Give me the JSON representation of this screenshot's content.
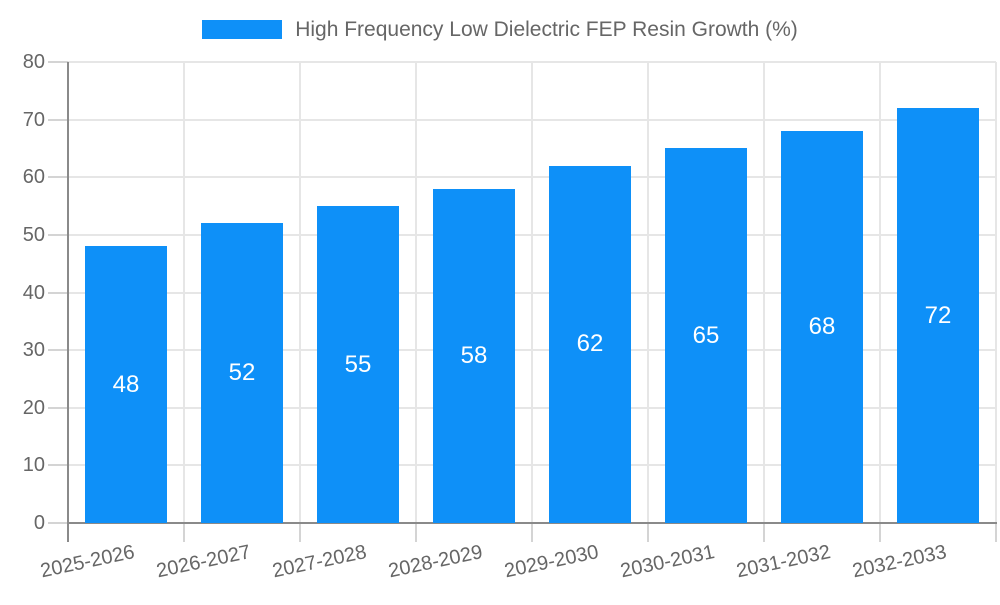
{
  "chart_data": {
    "type": "bar",
    "title": "High Frequency Low Dielectric FEP Resin Growth (%)",
    "legend": {
      "label": "High Frequency Low Dielectric FEP Resin Growth (%)",
      "position": "top-center"
    },
    "categories": [
      "2025-2026",
      "2026-2027",
      "2027-2028",
      "2028-2029",
      "2029-2030",
      "2030-2031",
      "2031-2032",
      "2032-2033"
    ],
    "values": [
      48,
      52,
      55,
      58,
      62,
      65,
      68,
      72
    ],
    "xlabel": "",
    "ylabel": "",
    "ylim": [
      0,
      80
    ],
    "yticks": [
      0,
      10,
      20,
      30,
      40,
      50,
      60,
      70,
      80
    ],
    "grid": "both",
    "bar_label_position": "center",
    "x_label_rotation_deg": -12,
    "colors": {
      "bar": "#0e90f8",
      "bar_label": "#ffffff",
      "text": "#666666",
      "axis_line": "#8a8a8a",
      "tick_line": "#d4d4d4",
      "gridline": "#e6e6e6",
      "background": "#ffffff"
    }
  }
}
